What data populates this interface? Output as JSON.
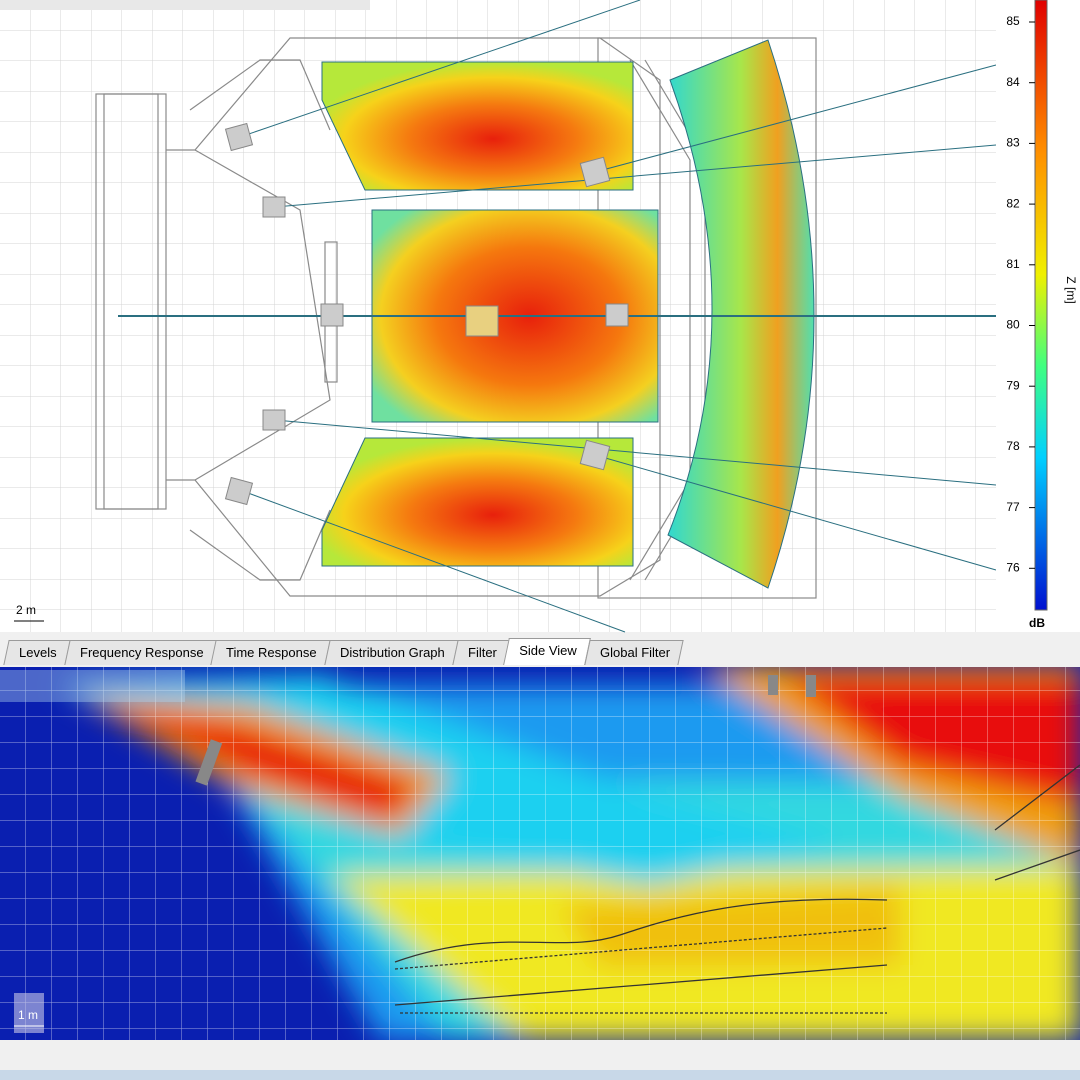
{
  "plan_view": {
    "scale_label": "2 m",
    "colorbar": {
      "ticks": [
        85,
        84,
        83,
        82,
        81,
        80,
        79,
        78,
        77,
        76
      ],
      "unit": "dB",
      "axis_label": "Z [m]"
    }
  },
  "tabs": [
    "Levels",
    "Frequency Response",
    "Time Response",
    "Distribution Graph",
    "Filter",
    "Side View",
    "Global Filter"
  ],
  "active_tab": 5,
  "side_view": {
    "scale_label": "1 m"
  }
}
